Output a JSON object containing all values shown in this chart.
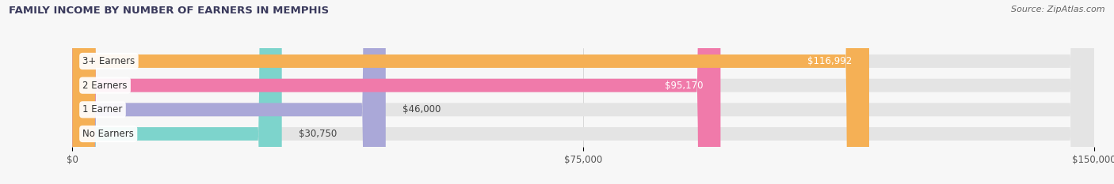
{
  "title": "FAMILY INCOME BY NUMBER OF EARNERS IN MEMPHIS",
  "source": "Source: ZipAtlas.com",
  "categories": [
    "No Earners",
    "1 Earner",
    "2 Earners",
    "3+ Earners"
  ],
  "values": [
    30750,
    46000,
    95170,
    116992
  ],
  "bar_colors": [
    "#7dd4cc",
    "#aaa8d8",
    "#f07aaa",
    "#f5b055"
  ],
  "label_colors": [
    "#444444",
    "#444444",
    "#ffffff",
    "#ffffff"
  ],
  "value_labels": [
    "$30,750",
    "$46,000",
    "$95,170",
    "$116,992"
  ],
  "xlim": [
    0,
    150000
  ],
  "xticks": [
    0,
    75000,
    150000
  ],
  "xtick_labels": [
    "$0",
    "$75,000",
    "$150,000"
  ],
  "fig_bg_color": "#f7f7f7",
  "bar_bg_color": "#e4e4e4",
  "title_color": "#3a3a5c",
  "source_color": "#666666"
}
